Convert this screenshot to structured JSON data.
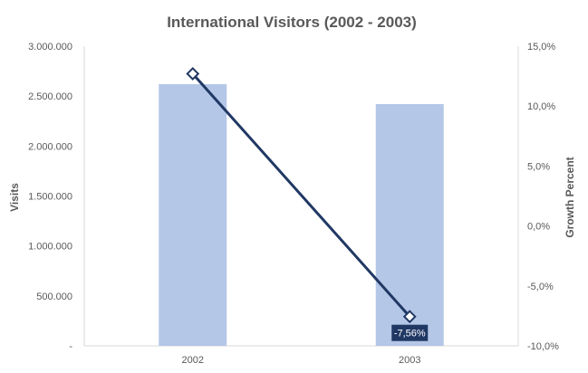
{
  "chart_data": {
    "type": "bar",
    "title": "International Visitors (2002 - 2003)",
    "categories": [
      "2002",
      "2003"
    ],
    "series": [
      {
        "type": "bar",
        "axis": "left",
        "values": [
          2620000,
          2420000
        ],
        "color": "#b4c7e7"
      },
      {
        "type": "line",
        "axis": "right",
        "values": [
          12.7,
          -7.56
        ],
        "color": "#203864",
        "marker": "diamond",
        "data_labels": [
          "",
          "-7,56%"
        ]
      }
    ],
    "ylabel": "Visits",
    "y2label": "Growth Percent",
    "ylim": [
      0,
      3000000
    ],
    "y2lim": [
      -10,
      15
    ],
    "y_ticks": [
      "-",
      "500.000",
      "1.000.000",
      "1.500.000",
      "2.000.000",
      "2.500.000",
      "3.000.000"
    ],
    "y2_ticks": [
      "-10,0%",
      "-5,0%",
      "0,0%",
      "5,0%",
      "10,0%",
      "15,0%"
    ],
    "grid": false,
    "legend": "none"
  }
}
